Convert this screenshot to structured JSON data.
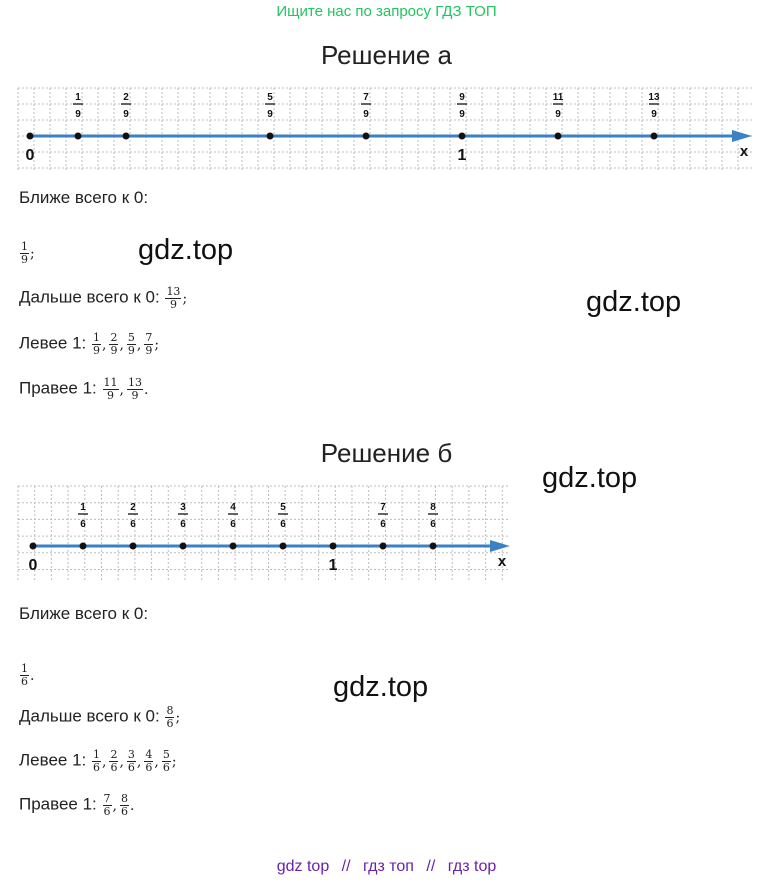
{
  "top_link": "Ищите нас по запросу ГДЗ ТОП",
  "watermark": "gdz.top",
  "footer": {
    "left": "gdz top",
    "sep1": "//",
    "mid": "гдз топ",
    "sep2": "//",
    "right": "гдз top"
  },
  "part_a": {
    "title": "Решение а",
    "numberline": {
      "zero_label": "0",
      "one_label": "1",
      "axis_label": "x",
      "points": [
        {
          "n": "1",
          "d": "9",
          "value": 0.1111
        },
        {
          "n": "2",
          "d": "9",
          "value": 0.2222
        },
        {
          "n": "5",
          "d": "9",
          "value": 0.5556
        },
        {
          "n": "7",
          "d": "9",
          "value": 0.7778
        },
        {
          "n": "9",
          "d": "9",
          "value": 1.0
        },
        {
          "n": "11",
          "d": "9",
          "value": 1.2222
        },
        {
          "n": "13",
          "d": "9",
          "value": 1.4444
        }
      ]
    },
    "closest_label": "Ближе всего к 0:",
    "closest": [
      {
        "n": "1",
        "d": "9"
      }
    ],
    "closest_end": ";",
    "farthest_label": "Дальше всего к 0:",
    "farthest": [
      {
        "n": "13",
        "d": "9"
      }
    ],
    "farthest_end": ";",
    "left_label": "Левее 1:",
    "left": [
      {
        "n": "1",
        "d": "9"
      },
      {
        "n": "2",
        "d": "9"
      },
      {
        "n": "5",
        "d": "9"
      },
      {
        "n": "7",
        "d": "9"
      }
    ],
    "left_end": ";",
    "right_label": "Правее 1:",
    "right": [
      {
        "n": "11",
        "d": "9"
      },
      {
        "n": "13",
        "d": "9"
      }
    ],
    "right_end": "."
  },
  "part_b": {
    "title": "Решение б",
    "numberline": {
      "zero_label": "0",
      "one_label": "1",
      "axis_label": "x",
      "points": [
        {
          "n": "1",
          "d": "6",
          "value": 0.1667
        },
        {
          "n": "2",
          "d": "6",
          "value": 0.3333
        },
        {
          "n": "3",
          "d": "6",
          "value": 0.5
        },
        {
          "n": "4",
          "d": "6",
          "value": 0.6667
        },
        {
          "n": "5",
          "d": "6",
          "value": 0.8333
        },
        {
          "n": "",
          "d": "",
          "value": 1.0
        },
        {
          "n": "7",
          "d": "6",
          "value": 1.1667
        },
        {
          "n": "8",
          "d": "6",
          "value": 1.3333
        }
      ]
    },
    "closest_label": "Ближе всего к 0:",
    "closest": [
      {
        "n": "1",
        "d": "6"
      }
    ],
    "closest_end": ".",
    "farthest_label": "Дальше всего к 0:",
    "farthest": [
      {
        "n": "8",
        "d": "6"
      }
    ],
    "farthest_end": ";",
    "left_label": "Левее 1:",
    "left": [
      {
        "n": "1",
        "d": "6"
      },
      {
        "n": "2",
        "d": "6"
      },
      {
        "n": "3",
        "d": "6"
      },
      {
        "n": "4",
        "d": "6"
      },
      {
        "n": "5",
        "d": "6"
      }
    ],
    "left_end": ";",
    "right_label": "Правее 1:",
    "right": [
      {
        "n": "7",
        "d": "6"
      },
      {
        "n": "8",
        "d": "6"
      }
    ],
    "right_end": "."
  }
}
